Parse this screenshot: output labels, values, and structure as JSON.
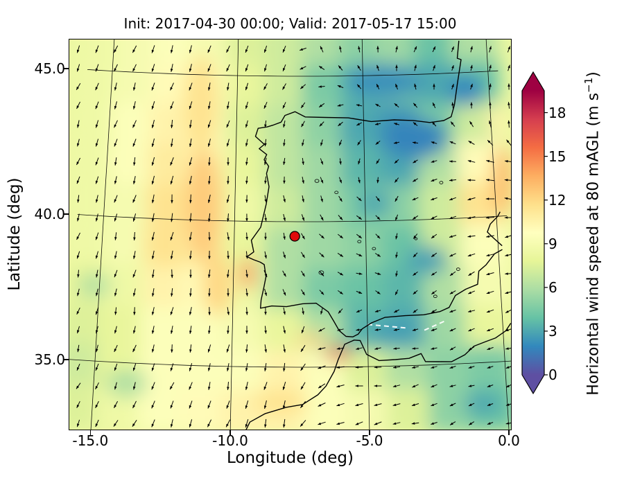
{
  "title": "Init: 2017-04-30 00:00; Valid: 2017-05-17 15:00",
  "axes": {
    "x": {
      "label": "Longitude (deg)",
      "ticks": [
        "-15.0",
        "-10.0",
        "-5.0",
        "0.0"
      ],
      "tick_values": [
        -15,
        -10,
        -5,
        0
      ]
    },
    "y": {
      "label": "Latitude (deg)",
      "ticks": [
        "45.0",
        "40.0",
        "35.0"
      ],
      "tick_values": [
        45,
        40,
        35
      ]
    }
  },
  "colorbar": {
    "label_prefix": "Horizontal wind speed at 80 mAGL (m s",
    "label_sup": "−1",
    "label_suffix": ")",
    "ticks": [
      "0",
      "3",
      "6",
      "9",
      "12",
      "15",
      "18"
    ],
    "tick_values": [
      0,
      3,
      6,
      9,
      12,
      15,
      18
    ],
    "vmin": 0,
    "vmax": 19.5,
    "extend": "both",
    "stops": [
      {
        "v": 0.0,
        "c": "#5e4fa2"
      },
      {
        "v": 1.95,
        "c": "#3288bd"
      },
      {
        "v": 3.9,
        "c": "#66c2a5"
      },
      {
        "v": 5.85,
        "c": "#abdda4"
      },
      {
        "v": 7.8,
        "c": "#e6f598"
      },
      {
        "v": 9.75,
        "c": "#ffffbf"
      },
      {
        "v": 11.7,
        "c": "#fee08b"
      },
      {
        "v": 13.65,
        "c": "#fdae61"
      },
      {
        "v": 15.6,
        "c": "#f46d43"
      },
      {
        "v": 17.55,
        "c": "#d53e4f"
      },
      {
        "v": 19.5,
        "c": "#9e0142"
      }
    ]
  },
  "marker": {
    "lon": -7.7,
    "lat": 39.5,
    "color": "#e00b0b"
  },
  "chart_data": {
    "type": "heatmap",
    "overlays": [
      "quiver-wind-arrows",
      "coastlines",
      "graticule",
      "site-marker"
    ],
    "title": "Init: 2017-04-30 00:00; Valid: 2017-05-17 15:00",
    "xlabel": "Longitude (deg)",
    "ylabel": "Latitude (deg)",
    "colorbar_label": "Horizontal wind speed at 80 mAGL (m s^-1)",
    "colormap": "Spectral_r",
    "x_range": [
      -15.8,
      0.1
    ],
    "y_range": [
      32.6,
      46.0
    ],
    "value_range": [
      0,
      19.5
    ],
    "grid_lons": [
      -15.5,
      -14,
      -12.5,
      -11,
      -9.5,
      -8,
      -6.5,
      -5,
      -3.5,
      -2,
      -0.5
    ],
    "grid_lats": [
      46,
      44.6,
      43.2,
      41.8,
      40.4,
      39,
      37.6,
      36.2,
      34.8,
      33.4
    ],
    "wind_speed": [
      [
        8.5,
        9,
        9.5,
        9,
        7.5,
        7,
        6,
        5,
        5.5,
        4,
        6
      ],
      [
        8.5,
        9,
        10,
        9.5,
        8,
        7,
        4.5,
        3.5,
        4.5,
        3,
        4
      ],
      [
        8.5,
        9.5,
        10.5,
        9.5,
        7.5,
        6.5,
        5,
        3,
        2.5,
        4.5,
        7
      ],
      [
        8.5,
        9.5,
        11,
        10.5,
        8,
        6.5,
        5.5,
        3.5,
        3,
        6,
        10
      ],
      [
        8.5,
        9,
        11.5,
        11,
        8.5,
        7,
        5.5,
        4.5,
        5,
        7,
        11.5
      ],
      [
        8.5,
        9,
        11.5,
        11,
        8,
        6,
        5.5,
        5,
        4,
        7,
        9.5
      ],
      [
        8,
        8.5,
        10.5,
        10,
        8.5,
        6,
        4.5,
        4,
        3.5,
        6,
        9
      ],
      [
        7.5,
        8,
        9.5,
        9.5,
        9,
        8,
        6,
        3.5,
        3,
        5.5,
        8
      ],
      [
        7,
        8,
        9.5,
        9.5,
        9.5,
        10.5,
        9.5,
        7.5,
        6,
        5,
        4.5
      ],
      [
        7.5,
        8.5,
        9.5,
        10,
        10.5,
        10.5,
        9.5,
        9,
        7.5,
        5,
        4
      ]
    ],
    "wind_dir_deg": [
      [
        245,
        248,
        250,
        252,
        250,
        240,
        100,
        80,
        70,
        60,
        75
      ],
      [
        248,
        250,
        252,
        254,
        252,
        245,
        160,
        120,
        90,
        70,
        80
      ],
      [
        250,
        252,
        255,
        257,
        255,
        252,
        230,
        190,
        150,
        120,
        100
      ],
      [
        252,
        254,
        257,
        260,
        262,
        268,
        285,
        255,
        205,
        185,
        165
      ],
      [
        253,
        255,
        258,
        263,
        268,
        278,
        300,
        320,
        215,
        195,
        180
      ],
      [
        254,
        256,
        260,
        266,
        274,
        288,
        315,
        340,
        225,
        205,
        190
      ],
      [
        255,
        257,
        261,
        267,
        277,
        295,
        330,
        350,
        230,
        210,
        195
      ],
      [
        254,
        256,
        259,
        263,
        270,
        285,
        200,
        185,
        195,
        205,
        200
      ],
      [
        248,
        250,
        253,
        256,
        260,
        265,
        190,
        182,
        190,
        200,
        198
      ],
      [
        242,
        244,
        247,
        250,
        253,
        256,
        200,
        192,
        198,
        205,
        200
      ]
    ],
    "hotspots": [
      [
        -11.4,
        44.0,
        11.5,
        26,
        70
      ],
      [
        -11.2,
        40.5,
        12.5,
        26,
        80
      ],
      [
        -10.6,
        37.8,
        12.0,
        22,
        45
      ],
      [
        -9.45,
        38.2,
        15.0,
        9,
        24
      ],
      [
        -6.1,
        35.45,
        16.8,
        20,
        9
      ],
      [
        -7.1,
        35.95,
        12.0,
        24,
        9
      ],
      [
        0.3,
        41.2,
        13.0,
        16,
        50
      ],
      [
        0.2,
        43.2,
        10.5,
        12,
        26
      ],
      [
        -4.2,
        44.8,
        2.3,
        55,
        26
      ],
      [
        -0.9,
        44.4,
        2.0,
        26,
        24
      ],
      [
        -3.0,
        42.8,
        1.8,
        48,
        30
      ],
      [
        -4.6,
        40.6,
        3.0,
        26,
        18
      ],
      [
        -2.7,
        38.6,
        2.8,
        30,
        20
      ],
      [
        -4.1,
        36.15,
        2.6,
        38,
        11
      ],
      [
        -5.4,
        36.9,
        3.5,
        20,
        13
      ],
      [
        -0.9,
        33.6,
        3.0,
        28,
        16
      ],
      [
        -8.2,
        33.8,
        11.5,
        40,
        18
      ],
      [
        -13.8,
        34.3,
        6.0,
        30,
        20
      ],
      [
        -15.2,
        37.6,
        6.2,
        25,
        18
      ]
    ],
    "white_segments": [
      [
        -5.0,
        36.45,
        -3.6,
        36.3
      ],
      [
        -2.9,
        36.2,
        -2.1,
        36.5
      ]
    ],
    "lakes": [
      [
        -6.85,
        41.4,
        3
      ],
      [
        -6.1,
        41.0,
        2.5
      ],
      [
        -5.25,
        39.3,
        2.5
      ],
      [
        -4.7,
        39.05,
        2.5
      ],
      [
        -6.7,
        38.25,
        3.5
      ],
      [
        -2.45,
        37.35,
        2.5
      ],
      [
        -1.55,
        38.25,
        2.5
      ],
      [
        -2.05,
        41.25,
        2.5
      ],
      [
        -3.1,
        39.35,
        2
      ]
    ]
  }
}
